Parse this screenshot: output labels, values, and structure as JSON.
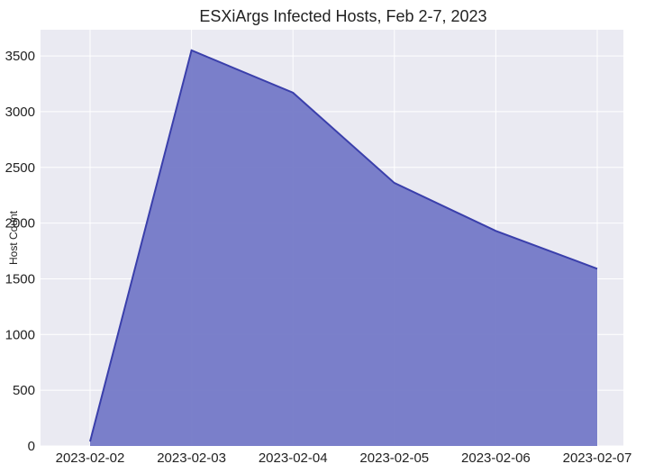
{
  "chart_data": {
    "type": "area",
    "title": "ESXiArgs Infected Hosts, Feb 2-7, 2023",
    "ylabel": "Host Count",
    "categories": [
      "2023-02-02",
      "2023-02-03",
      "2023-02-04",
      "2023-02-05",
      "2023-02-06",
      "2023-02-07"
    ],
    "series": [
      {
        "name": "Host Count",
        "color": "#3a3fab",
        "fill": "#7479c7",
        "values": [
          40,
          3550,
          3170,
          2360,
          1930,
          1590
        ]
      }
    ],
    "ylim": [
      0,
      3735
    ],
    "yticks": [
      0,
      500,
      1000,
      1500,
      2000,
      2500,
      3000,
      3500
    ],
    "grid": true
  }
}
